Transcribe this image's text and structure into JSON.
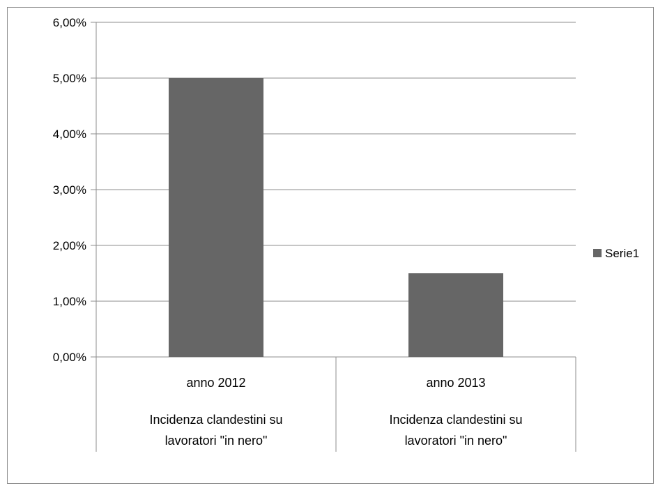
{
  "chart_data": {
    "type": "bar",
    "title": "",
    "xlabel": "",
    "ylabel": "",
    "categories": [
      [
        "anno 2012",
        "Incidenza clandestini su",
        "lavoratori \"in nero\""
      ],
      [
        "anno 2013",
        "Incidenza clandestini su",
        "lavoratori \"in nero\""
      ]
    ],
    "series": [
      {
        "name": "Serie1",
        "values": [
          0.05,
          0.015
        ],
        "color": "#666666"
      }
    ],
    "ylim": [
      0,
      0.06
    ],
    "yticks": [
      0,
      0.01,
      0.02,
      0.03,
      0.04,
      0.05,
      0.06
    ],
    "ytick_labels": [
      "0,00%",
      "1,00%",
      "2,00%",
      "3,00%",
      "4,00%",
      "5,00%",
      "6,00%"
    ],
    "grid": true,
    "legend": {
      "position": "right",
      "entries": [
        "Serie1"
      ]
    }
  }
}
